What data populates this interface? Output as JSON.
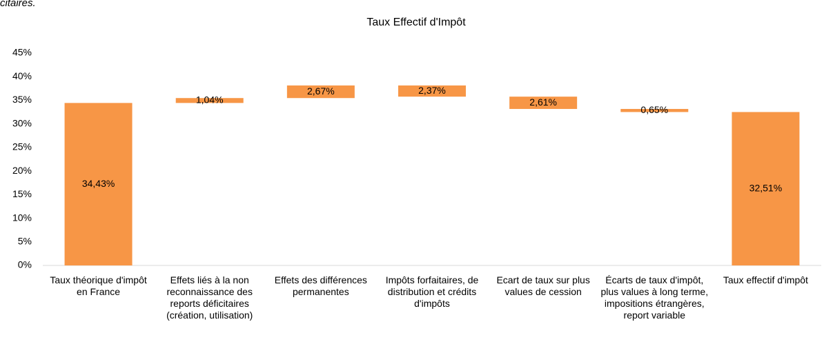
{
  "note": "citaires.",
  "chart_data": {
    "type": "waterfall",
    "title": "Taux Effectif d'Impôt",
    "categories": [
      "Taux théorique d'impôt en France",
      "Effets liés à la non reconnaissance des reports déficitaires (création, utilisation)",
      "Effets des différences permanentes",
      "Impôts forfaitaires, de distribution et crédits d'impôts",
      "Ecart de taux sur plus values de cession",
      "Écarts de taux d'impôt, plus values à long terme, impositions étrangères, report variable",
      "Taux effectif d'impôt"
    ],
    "measure": [
      "absolute",
      "relative",
      "relative",
      "relative",
      "relative",
      "relative",
      "total"
    ],
    "values": [
      34.43,
      1.04,
      2.67,
      -2.37,
      -2.61,
      -0.65,
      32.51
    ],
    "value_labels": [
      "34,43%",
      "1,04%",
      "2,67%",
      "2,37%",
      "2,61%",
      "0,65%",
      "32,51%"
    ],
    "color": "#f79646",
    "ylim": [
      0,
      45
    ],
    "yticks": [
      {
        "value": 0,
        "label": "0%"
      },
      {
        "value": 5,
        "label": "5%"
      },
      {
        "value": 10,
        "label": "10%"
      },
      {
        "value": 15,
        "label": "15%"
      },
      {
        "value": 20,
        "label": "20%"
      },
      {
        "value": 25,
        "label": "25%"
      },
      {
        "value": 30,
        "label": "30%"
      },
      {
        "value": 35,
        "label": "35%"
      },
      {
        "value": 40,
        "label": "40%"
      },
      {
        "value": 45,
        "label": "45%"
      }
    ],
    "grid": false
  }
}
